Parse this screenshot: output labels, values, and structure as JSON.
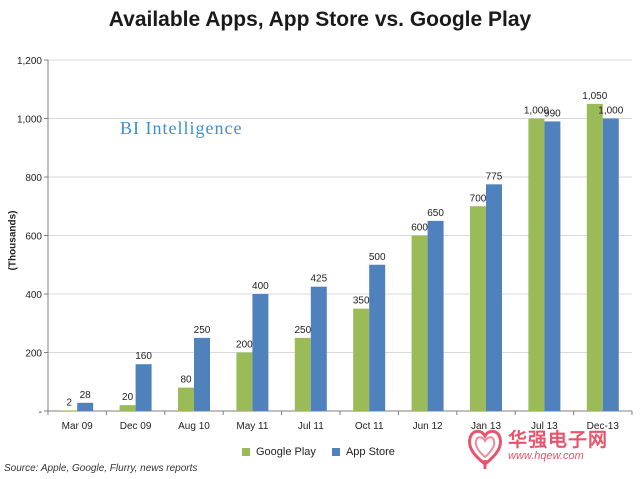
{
  "chart_data": {
    "type": "bar",
    "title": "Available Apps, App Store vs. Google Play",
    "ylabel": "(Thousands)",
    "xlabel": "",
    "ylim": [
      0,
      1200
    ],
    "yticks": [
      "-",
      "200",
      "400",
      "600",
      "800",
      "1,000",
      "1,200"
    ],
    "grid": true,
    "legend_position": "bottom",
    "categories": [
      "Mar 09",
      "Dec 09",
      "Aug 10",
      "May 11",
      "Jul 11",
      "Oct 11",
      "Jun 12",
      "Jan 13",
      "Jul 13",
      "Dec-13"
    ],
    "series": [
      {
        "name": "Google Play",
        "color": "#9bbb59",
        "values": [
          2,
          20,
          80,
          200,
          250,
          350,
          600,
          700,
          1000,
          1050
        ],
        "labels": [
          "2",
          "20",
          "80",
          "200",
          "250",
          "350",
          "600",
          "700",
          "1,000",
          "1,050"
        ]
      },
      {
        "name": "App Store",
        "color": "#4f81bd",
        "values": [
          28,
          160,
          250,
          400,
          425,
          500,
          650,
          775,
          990,
          1000
        ],
        "labels": [
          "28",
          "160",
          "250",
          "400",
          "425",
          "500",
          "650",
          "775",
          "990",
          "1,000"
        ]
      }
    ]
  },
  "watermark": "BI Intelligence",
  "source": "Source: Apple, Google, Flurry, news reports",
  "logo": {
    "name": "华强电子网",
    "url": "www.hqew.com",
    "color": "#e8546b"
  }
}
